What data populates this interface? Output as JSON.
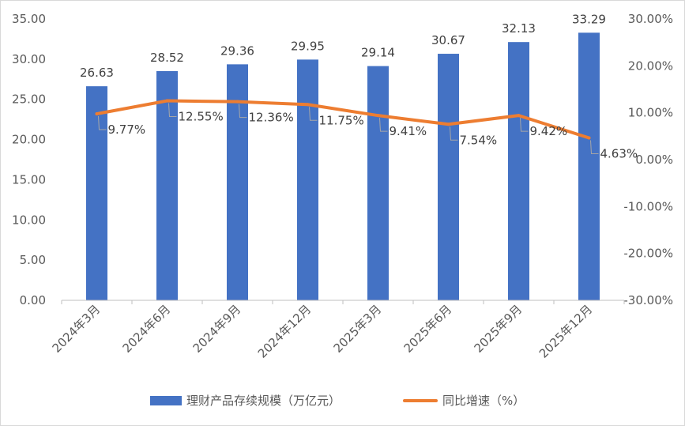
{
  "chart_data": {
    "type": "bar",
    "categories": [
      "2024年3月",
      "2024年6月",
      "2024年9月",
      "2024年12月",
      "2025年3月",
      "2025年6月",
      "2025年9月",
      "2025年12月"
    ],
    "series": [
      {
        "name": "理财产品存续规模（万亿元）",
        "type": "bar",
        "axis": "left",
        "color": "#4472C4",
        "values": [
          26.63,
          28.52,
          29.36,
          29.95,
          29.14,
          30.67,
          32.13,
          33.29
        ],
        "labels": [
          "26.63",
          "28.52",
          "29.36",
          "29.95",
          "29.14",
          "30.67",
          "32.13",
          "33.29"
        ]
      },
      {
        "name": "同比增速（%）",
        "type": "line",
        "axis": "right",
        "color": "#ED7D31",
        "values": [
          9.77,
          12.55,
          12.36,
          11.75,
          9.41,
          7.54,
          9.42,
          4.63
        ],
        "labels": [
          "9.77%",
          "12.55%",
          "12.36%",
          "11.75%",
          "9.41%",
          "7.54%",
          "9.42%",
          "4.63%"
        ]
      }
    ],
    "left_axis": {
      "min": 0,
      "max": 35,
      "step": 5,
      "tick_labels": [
        "0.00",
        "5.00",
        "10.00",
        "15.00",
        "20.00",
        "25.00",
        "30.00",
        "35.00"
      ]
    },
    "right_axis": {
      "min": -30,
      "max": 30,
      "step": 10,
      "tick_labels": [
        "-30.00%",
        "-20.00%",
        "-10.00%",
        "0.00%",
        "10.00%",
        "20.00%",
        "30.00%"
      ]
    },
    "legend_position": "bottom",
    "grid": false
  }
}
